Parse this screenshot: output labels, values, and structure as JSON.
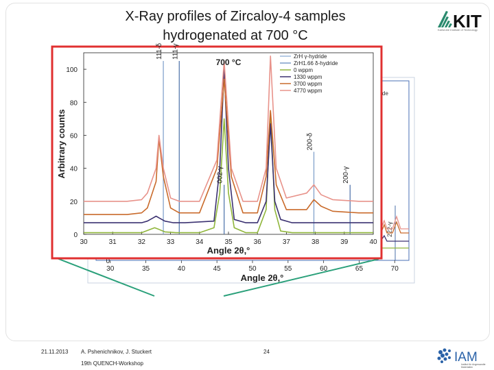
{
  "slide": {
    "title_line1": "X-Ray profiles of Zircaloy-4 samples",
    "title_line2": "hydrogenated at 700 °C",
    "kit_logo_text": "KIT",
    "kit_logo_sub": "Karlsruhe Institute of Technology",
    "footer_date": "21.11.2013",
    "footer_authors": "A. Pshenichnikov, J. Stuckert",
    "footer_workshop": "19th QUENCH-Workshop",
    "footer_page": "24",
    "iam_logo_text": "IAM",
    "iam_logo_sub": "Institut für Angewandte Materialien",
    "colors": {
      "red_frame": "#e03030",
      "callout": "#2aa07a",
      "bg_blue": "#4a6fb5"
    }
  },
  "chart_data": [
    {
      "type": "line",
      "title": "700 °C",
      "xlabel": "Angle 2θ,°",
      "ylabel": "Arbitrary counts",
      "xlim": [
        30,
        40
      ],
      "ylim": [
        0,
        110
      ],
      "xticks": [
        30,
        31,
        32,
        33,
        34,
        35,
        36,
        37,
        38,
        39,
        40
      ],
      "yticks": [
        0,
        20,
        40,
        60,
        80,
        100
      ],
      "legend": "top-right",
      "grid": false,
      "reference_lines": [
        {
          "label": "111-δ",
          "x": 32.75,
          "y_top": 105,
          "color": "#7a9cc8"
        },
        {
          "label": "111-γ",
          "x": 33.3,
          "y_top": 105,
          "color": "#4a6fa8"
        },
        {
          "label": "002-γ",
          "x": 34.85,
          "y_top": 30,
          "color": "#4a6fa8"
        },
        {
          "label": "200-δ",
          "x": 37.95,
          "y_top": 50,
          "color": "#7a9cc8"
        },
        {
          "label": "200-γ",
          "x": 39.2,
          "y_top": 30,
          "color": "#4a6fa8"
        }
      ],
      "series": [
        {
          "name": "0 wppm",
          "color": "#8fb53a",
          "x": [
            30,
            31.5,
            32.0,
            32.3,
            32.45,
            32.6,
            32.8,
            33.2,
            34.0,
            34.5,
            34.7,
            34.85,
            35.0,
            35.2,
            35.6,
            36.0,
            36.3,
            36.45,
            36.6,
            36.8,
            37.2,
            38.0,
            40
          ],
          "y": [
            1,
            1,
            1,
            3,
            4,
            3,
            1.5,
            1,
            1,
            4,
            25,
            70,
            25,
            4,
            1,
            1,
            15,
            74,
            15,
            2,
            1,
            1,
            1
          ]
        },
        {
          "name": "1330 wppm",
          "color": "#3a3070",
          "x": [
            30,
            31.5,
            32.0,
            32.2,
            32.4,
            32.5,
            32.6,
            32.8,
            33.1,
            33.5,
            34.5,
            34.7,
            34.85,
            35.0,
            35.2,
            35.6,
            36.0,
            36.3,
            36.45,
            36.6,
            36.8,
            37.2,
            38.0,
            40
          ],
          "y": [
            7,
            7,
            7,
            8,
            10,
            11,
            10,
            8,
            7,
            7,
            8,
            40,
            100,
            40,
            9,
            7,
            7,
            20,
            67,
            20,
            9,
            7,
            7,
            7
          ]
        },
        {
          "name": "3700 wppm",
          "color": "#c96a2a",
          "x": [
            30,
            31.5,
            32.0,
            32.2,
            32.5,
            32.6,
            32.75,
            33.0,
            33.3,
            34.0,
            34.6,
            34.85,
            35.1,
            35.5,
            36.0,
            36.3,
            36.45,
            36.65,
            37.0,
            37.7,
            37.95,
            38.2,
            38.6,
            39.5,
            40
          ],
          "y": [
            12,
            12,
            13,
            16,
            32,
            58,
            35,
            16,
            13,
            13,
            40,
            94,
            35,
            13,
            13,
            35,
            75,
            30,
            15,
            15,
            21,
            17,
            14,
            13,
            13
          ]
        },
        {
          "name": "4770 wppm",
          "color": "#e8928a",
          "x": [
            30,
            31.5,
            32.0,
            32.2,
            32.5,
            32.6,
            32.75,
            33.0,
            33.3,
            34.0,
            34.6,
            34.85,
            35.1,
            35.5,
            36.0,
            36.3,
            36.45,
            36.65,
            37.0,
            37.7,
            37.95,
            38.2,
            38.6,
            39.5,
            40
          ],
          "y": [
            20,
            20,
            21,
            25,
            40,
            60,
            40,
            22,
            20,
            20,
            45,
            105,
            40,
            20,
            20,
            40,
            108,
            40,
            22,
            25,
            30,
            24,
            21,
            20,
            20
          ]
        }
      ],
      "legend_entries": [
        {
          "name": "ZrH γ-hydride",
          "color": "#9cb8dc"
        },
        {
          "name": "ZrH1.66 δ-hydride",
          "color": "#7a9cc8"
        },
        {
          "name": "0 wppm",
          "color": "#8fb53a"
        },
        {
          "name": "1330 wppm",
          "color": "#3a3070"
        },
        {
          "name": "3700 wppm",
          "color": "#c96a2a"
        },
        {
          "name": "4770 wppm",
          "color": "#e8928a"
        }
      ]
    },
    {
      "type": "line",
      "title": "",
      "xlabel": "Angle 2θ,°",
      "ylabel": "",
      "xlim": [
        28,
        72
      ],
      "xticks": [
        30,
        35,
        40,
        45,
        50,
        55,
        60,
        65,
        70
      ],
      "yticks": [
        0
      ],
      "visible_labels": [
        "de",
        "222-γ"
      ],
      "partially_hidden": true
    }
  ]
}
